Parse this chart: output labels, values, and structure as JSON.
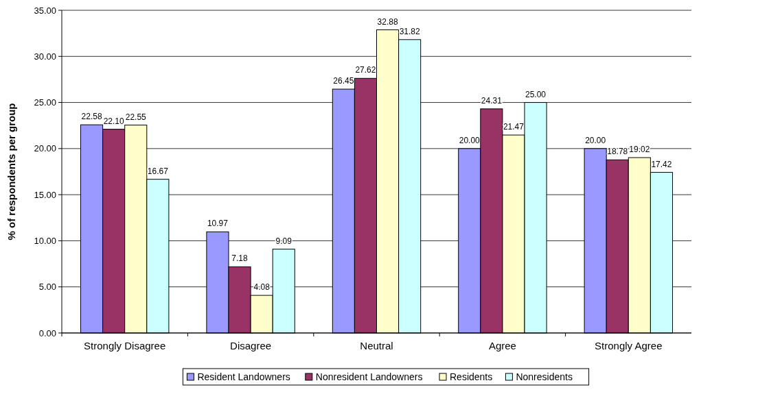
{
  "chart_data": {
    "type": "bar",
    "ylabel": "% of respondents  per group",
    "categories": [
      "Strongly Disagree",
      "Disagree",
      "Neutral",
      "Agree",
      "Strongly Agree"
    ],
    "series": [
      {
        "name": "Resident Landowners",
        "color": "#9999ff",
        "values": [
          22.58,
          10.97,
          26.45,
          20.0,
          20.0
        ],
        "value_labels": [
          "22.58",
          "10.97",
          "26.45",
          "20.00",
          "20.00"
        ]
      },
      {
        "name": "Nonresident Landowners",
        "color": "#993366",
        "values": [
          22.1,
          7.18,
          27.62,
          24.31,
          18.78
        ],
        "value_labels": [
          "22.10",
          "7.18",
          "27.62",
          "24.31",
          "18.78"
        ]
      },
      {
        "name": "Residents",
        "color": "#ffffcc",
        "values": [
          22.55,
          4.08,
          32.88,
          21.47,
          19.02
        ],
        "value_labels": [
          "22.55",
          "4.08",
          "32.88",
          "21.47",
          "19.02"
        ]
      },
      {
        "name": "Nonresidents",
        "color": "#ccffff",
        "values": [
          16.67,
          9.09,
          31.82,
          25.0,
          17.42
        ],
        "value_labels": [
          "16.67",
          "9.09",
          "31.82",
          "25.00",
          "17.42"
        ]
      }
    ],
    "ylim": [
      0,
      35
    ],
    "yticks": [
      {
        "value": 0,
        "label": "0.00"
      },
      {
        "value": 5,
        "label": "5.00"
      },
      {
        "value": 10,
        "label": "10.00"
      },
      {
        "value": 15,
        "label": "15.00"
      },
      {
        "value": 20,
        "label": "20.00"
      },
      {
        "value": 25,
        "label": "25.00"
      },
      {
        "value": 30,
        "label": "30.00"
      },
      {
        "value": 35,
        "label": "35.00"
      }
    ],
    "grid": "y",
    "legend": "bottom"
  }
}
